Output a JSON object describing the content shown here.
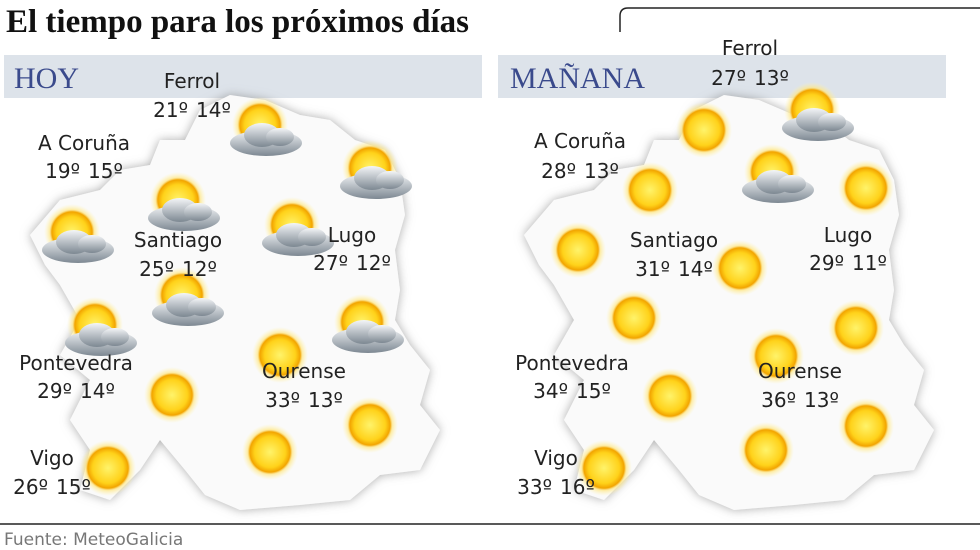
{
  "title": "El tiempo para los próximos días",
  "source": "Fuente: MeteoGalicia",
  "panels": [
    {
      "label": "HOY",
      "cities": [
        {
          "name": "Ferrol",
          "max": "21º",
          "min": "14º"
        },
        {
          "name": "A Coruña",
          "max": "19º",
          "min": "15º"
        },
        {
          "name": "Santiago",
          "max": "25º",
          "min": "12º"
        },
        {
          "name": "Lugo",
          "max": "27º",
          "min": "12º"
        },
        {
          "name": "Pontevedra",
          "max": "29º",
          "min": "14º"
        },
        {
          "name": "Ourense",
          "max": "33º",
          "min": "13º"
        },
        {
          "name": "Vigo",
          "max": "26º",
          "min": "15º"
        }
      ]
    },
    {
      "label": "MAÑANA",
      "cities": [
        {
          "name": "Ferrol",
          "max": "27º",
          "min": "13º"
        },
        {
          "name": "A Coruña",
          "max": "28º",
          "min": "13º"
        },
        {
          "name": "Santiago",
          "max": "31º",
          "min": "14º"
        },
        {
          "name": "Lugo",
          "max": "29º",
          "min": "11º"
        },
        {
          "name": "Pontevedra",
          "max": "34º",
          "min": "15º"
        },
        {
          "name": "Ourense",
          "max": "36º",
          "min": "13º"
        },
        {
          "name": "Vigo",
          "max": "33º",
          "min": "16º"
        }
      ]
    }
  ]
}
